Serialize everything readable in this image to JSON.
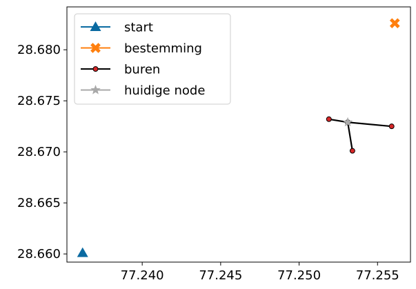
{
  "chart_data": {
    "type": "scatter",
    "xlim": [
      77.2352,
      77.2571
    ],
    "ylim": [
      28.6592,
      28.6842
    ],
    "x_ticks": [
      {
        "value": 77.24,
        "label": "77.240"
      },
      {
        "value": 77.245,
        "label": "77.245"
      },
      {
        "value": 77.25,
        "label": "77.250"
      },
      {
        "value": 77.255,
        "label": "77.255"
      }
    ],
    "y_ticks": [
      {
        "value": 28.66,
        "label": "28.660"
      },
      {
        "value": 28.665,
        "label": "28.665"
      },
      {
        "value": 28.67,
        "label": "28.670"
      },
      {
        "value": 28.675,
        "label": "28.675"
      },
      {
        "value": 28.68,
        "label": "28.680"
      }
    ],
    "grid": false,
    "legend_placement": "top-left",
    "series": [
      {
        "name": "start",
        "marker": "triangle",
        "color": "#0a6aa1",
        "line": true,
        "points": [
          [
            77.2362,
            28.6601
          ]
        ]
      },
      {
        "name": "bestemming",
        "marker": "x-filled",
        "color": "#ff7f0e",
        "line": true,
        "points": [
          [
            77.2561,
            28.6826
          ]
        ]
      },
      {
        "name": "buren",
        "marker": "circle",
        "color": "#000000",
        "marker_fill": "#d62728",
        "line": true,
        "points": [
          [
            77.2519,
            28.6732
          ],
          [
            77.2531,
            28.6729
          ],
          [
            77.2559,
            28.6725
          ],
          [
            77.2531,
            28.6729
          ],
          [
            77.2534,
            28.6701
          ]
        ]
      },
      {
        "name": "huidige node",
        "marker": "star",
        "color": "#a9a9a9",
        "line": true,
        "points": [
          [
            77.2531,
            28.6729
          ]
        ]
      }
    ]
  }
}
